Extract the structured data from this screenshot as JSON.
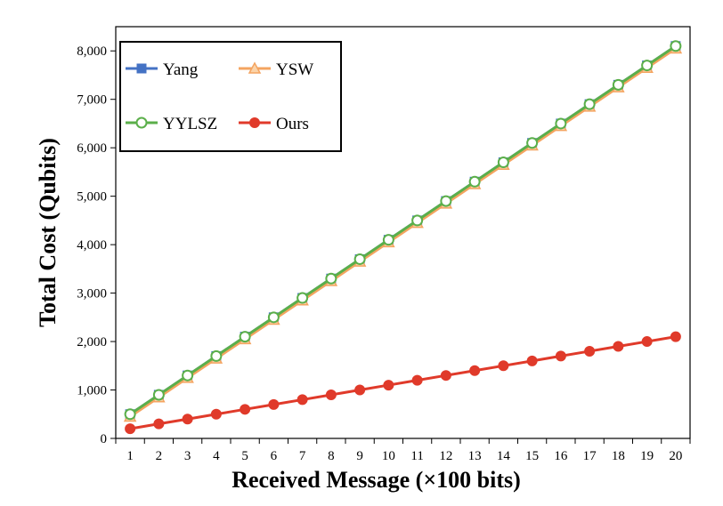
{
  "chart_data": {
    "type": "line",
    "title": "",
    "xlabel": "Received Message (×100 bits)",
    "ylabel": "Total Cost (Qubits)",
    "categories": [
      "1",
      "2",
      "3",
      "4",
      "5",
      "6",
      "7",
      "8",
      "9",
      "10",
      "11",
      "12",
      "13",
      "14",
      "15",
      "16",
      "17",
      "18",
      "19",
      "20"
    ],
    "ylim": [
      0,
      8500
    ],
    "yticks": [
      0,
      1000,
      2000,
      3000,
      4000,
      5000,
      6000,
      7000,
      8000
    ],
    "ytick_labels": [
      "0",
      "1,000",
      "2,000",
      "3,000",
      "4,000",
      "5,000",
      "6,000",
      "7,000",
      "8,000"
    ],
    "grid": false,
    "legend_position": "top-left",
    "series": [
      {
        "name": "Yang",
        "color": "#4472C4",
        "marker": "square",
        "values": [
          500,
          900,
          1300,
          1700,
          2100,
          2500,
          2900,
          3300,
          3700,
          4100,
          4500,
          4900,
          5300,
          5700,
          6100,
          6500,
          6900,
          7300,
          7700,
          8100
        ]
      },
      {
        "name": "YSW",
        "color": "#F4A460",
        "marker": "triangle",
        "values": [
          450,
          850,
          1250,
          1650,
          2050,
          2450,
          2850,
          3250,
          3650,
          4050,
          4450,
          4850,
          5250,
          5650,
          6050,
          6450,
          6850,
          7250,
          7650,
          8050
        ]
      },
      {
        "name": "YYLSZ",
        "color": "#5BAF4A",
        "marker": "circle-open",
        "values": [
          500,
          900,
          1300,
          1700,
          2100,
          2500,
          2900,
          3300,
          3700,
          4100,
          4500,
          4900,
          5300,
          5700,
          6100,
          6500,
          6900,
          7300,
          7700,
          8100
        ]
      },
      {
        "name": "Ours",
        "color": "#E03A2A",
        "marker": "circle",
        "values": [
          200,
          300,
          400,
          500,
          600,
          700,
          800,
          900,
          1000,
          1100,
          1200,
          1300,
          1400,
          1500,
          1600,
          1700,
          1800,
          1900,
          2000,
          2100
        ]
      }
    ]
  }
}
